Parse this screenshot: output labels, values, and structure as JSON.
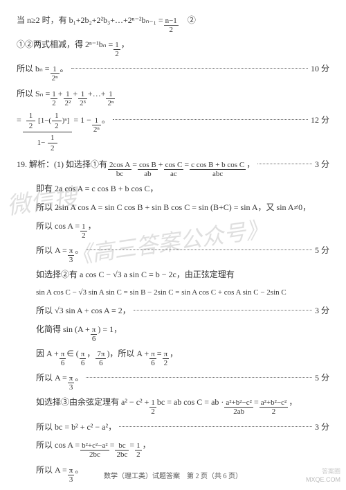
{
  "lines": {
    "l1": "当 n≥2 时，有 b₁+2b₂+2²b₃+…+2ⁿ⁻²bₙ₋₁ = ",
    "l1_frac_n": "n−1",
    "l1_frac_d": "2",
    "l1_tail": "　②",
    "l2a": "①②两式相减，得 2ⁿ⁻¹bₙ = ",
    "l2_frac_n": "1",
    "l2_frac_d": "2",
    "l2_tail": "，",
    "l3a": "所以 bₙ = ",
    "l3_frac_n": "1",
    "l3_frac_d": "2ⁿ",
    "l3_tail": "。",
    "s10": "10 分",
    "l4a": "所以 Sₙ = ",
    "l4_f1n": "1",
    "l4_f1d": "2",
    "l4_p": " + ",
    "l4_f2n": "1",
    "l4_f2d": "2²",
    "l4_f3n": "1",
    "l4_f3d": "2³",
    "l4_mid": " +…+ ",
    "l4_f4n": "1",
    "l4_f4d": "2ⁿ",
    "l5_eq": " = ",
    "l5_topA": "1",
    "l5_topB": "2",
    "l5_br_l": "[1−(",
    "l5_inner_n": "1",
    "l5_inner_d": "2",
    "l5_br_r": ")ⁿ]",
    "l5_botA": "1− ",
    "l5_bot_n": "1",
    "l5_bot_d": "2",
    "l5_res": " = 1 − ",
    "l5_res_n": "1",
    "l5_res_d": "2ⁿ",
    "l5_dot": "。",
    "s12": "12 分",
    "l6a": "19. 解析：(1) 如选择①有 ",
    "l6_f1n": "2cos A",
    "l6_f1d": "bc",
    "l6_eq": " = ",
    "l6_f2n": "cos B",
    "l6_f2d": "ab",
    "l6_p": " + ",
    "l6_f3n": "cos C",
    "l6_f3d": "ac",
    "l6_eq2": " = ",
    "l6_f4n": "c cos B + b cos C",
    "l6_f4d": "abc",
    "l6_tail": "，",
    "s3": "3 分",
    "l7": "即有 2a cos A = c cos B + b cos C，",
    "l8": "所以 2sin A cos A = sin C cos B + sin B cos C = sin (B+C) = sin A，又 sin A≠0，",
    "l9a": "所以 cos A = ",
    "l9_n": "1",
    "l9_d": "2",
    "l9_tail": "，",
    "l10a": "所以 A = ",
    "l10_n": "π",
    "l10_d": "3",
    "l10_tail": "。",
    "s5": "5 分",
    "l11": "如选择②有 a cos C − √3 a sin C = b − 2c，由正弦定理有",
    "l12": "sin A cos C − √3 sin A sin C = sin B − 2sin C = sin A cos C + cos A sin C − 2sin C",
    "l13": "所以 √3 sin A + cos A = 2，",
    "l14a": "化简得 sin (A + ",
    "l14_n": "π",
    "l14_d": "6",
    "l14_tail": ") = 1，",
    "l15a": "因 A + ",
    "l15_n": "π",
    "l15_d": "6",
    "l15_mid": " ∈ (",
    "l15_an": "π",
    "l15_ad": "6",
    "l15_c": "，",
    "l15_bn": "7π",
    "l15_bd": "6",
    "l15_mid2": ")，所以 A + ",
    "l15_cn": "π",
    "l15_cd": "6",
    "l15_eq": " = ",
    "l15_dn": "π",
    "l15_dd": "2",
    "l15_tail": "，",
    "l16a": "所以 A = ",
    "l16_n": "π",
    "l16_d": "3",
    "l16_tail": "。",
    "l17a": "如选择③由余弦定理有 a² − c² + ",
    "l17_n": "1",
    "l17_d": "2",
    "l17_mid": "bc = ab cos C = ab · ",
    "l17_f2n": "a²+b²−c²",
    "l17_f2d": "2ab",
    "l17_eq": " = ",
    "l17_f3n": "a²+b²−c²",
    "l17_f3d": "2",
    "l17_tail": "，",
    "l18": "所以 bc = b² + c² − a²，",
    "l19a": "所以 cos A = ",
    "l19_f1n": "b²+c²−a²",
    "l19_f1d": "2bc",
    "l19_eq": " = ",
    "l19_f2n": "bc",
    "l19_f2d": "2bc",
    "l19_eq2": " = ",
    "l19_f3n": "1",
    "l19_f3d": "2",
    "l19_tail": "，",
    "l20a": "所以 A = ",
    "l20_n": "π",
    "l20_d": "3",
    "l20_tail": "。"
  },
  "footer": "数学（理工类）试题答案　第 2 页（共 6 页）",
  "wm1": "微信搜",
  "wm2": "《高三答案公众号》",
  "corner": "MXQE.COM",
  "corner2": "答案圈"
}
